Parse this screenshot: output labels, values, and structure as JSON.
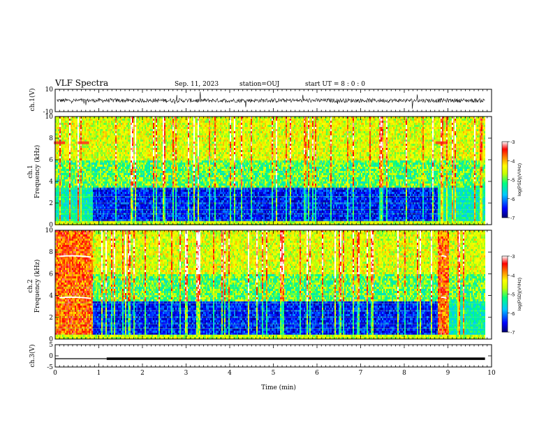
{
  "header": {
    "title": "VLF Spectra",
    "date": "Sep. 11, 2023",
    "station": "station=OUJ",
    "start": "start  UT =  8 : 0  : 0"
  },
  "colors": {
    "spec_scale": [
      "#00007a",
      "#0000ff",
      "#00c8ff",
      "#00ff80",
      "#c8ff00",
      "#ffff00",
      "#ff7a00",
      "#ff0000",
      "#ffffff"
    ]
  },
  "chart_data": [
    {
      "type": "line",
      "name": "ch1-waveform",
      "ylabel": "ch.1(V)",
      "ylim": [
        -10,
        10
      ],
      "yticks": [
        "10",
        "-10"
      ],
      "xlim": [
        0,
        10
      ],
      "baseline": 0,
      "noise_amplitude": 0.6
    },
    {
      "type": "heatmap",
      "name": "ch1-spectrogram",
      "ylabel": "ch.1\nFrequency (kHz)",
      "xlabel": "",
      "xlim": [
        0,
        10
      ],
      "ylim": [
        0,
        10
      ],
      "yticks": [
        "0",
        "2",
        "4",
        "6",
        "8",
        "10"
      ],
      "colorbar": {
        "label": "log(PSD)(V²/Hz)",
        "ticks": [
          "-3",
          "-4",
          "-5",
          "-6",
          "-7"
        ],
        "range": [
          -7,
          -3
        ]
      },
      "data_end_min": 9.85,
      "quiet_band_top_khz": 3.5,
      "quiet_band_start_min": 0.85,
      "quiet_band_end_min": 8.75,
      "bursts_min": [
        0.1,
        0.65,
        8.85
      ],
      "bursts_freq_khz": [
        7.5
      ]
    },
    {
      "type": "heatmap",
      "name": "ch2-spectrogram",
      "ylabel": "ch.2\nFrequency (kHz)",
      "xlabel": "",
      "xlim": [
        0,
        10
      ],
      "ylim": [
        0,
        10
      ],
      "yticks": [
        "0",
        "2",
        "4",
        "6",
        "8",
        "10"
      ],
      "colorbar": {
        "label": "log(PSD)(V²/Hz)",
        "ticks": [
          "-3",
          "-4",
          "-5",
          "-6",
          "-7"
        ],
        "range": [
          -7,
          -3
        ]
      },
      "data_end_min": 9.85,
      "quiet_band_top_khz": 3.5,
      "quiet_band_start_min": 0.85,
      "quiet_band_end_min": 8.75,
      "hot_intervals_min": [
        [
          0.0,
          0.85
        ],
        [
          8.75,
          9.0
        ]
      ],
      "bursts_freq_khz": [
        7.6,
        3.8
      ]
    },
    {
      "type": "line",
      "name": "ch3-waveform",
      "ylabel": "ch.3(V)",
      "xlabel": "Time (min)",
      "ylim": [
        -5,
        5
      ],
      "yticks": [
        "5",
        "0",
        "-5"
      ],
      "xlim": [
        0,
        10
      ],
      "xticks": [
        "0",
        "1",
        "2",
        "3",
        "4",
        "5",
        "6",
        "7",
        "8",
        "9",
        "10"
      ],
      "x": [
        0,
        1.18,
        1.18,
        9.85
      ],
      "y": [
        -1.3,
        -1.3,
        -1.3,
        -1.3
      ],
      "thin_until_min": 1.18
    }
  ]
}
